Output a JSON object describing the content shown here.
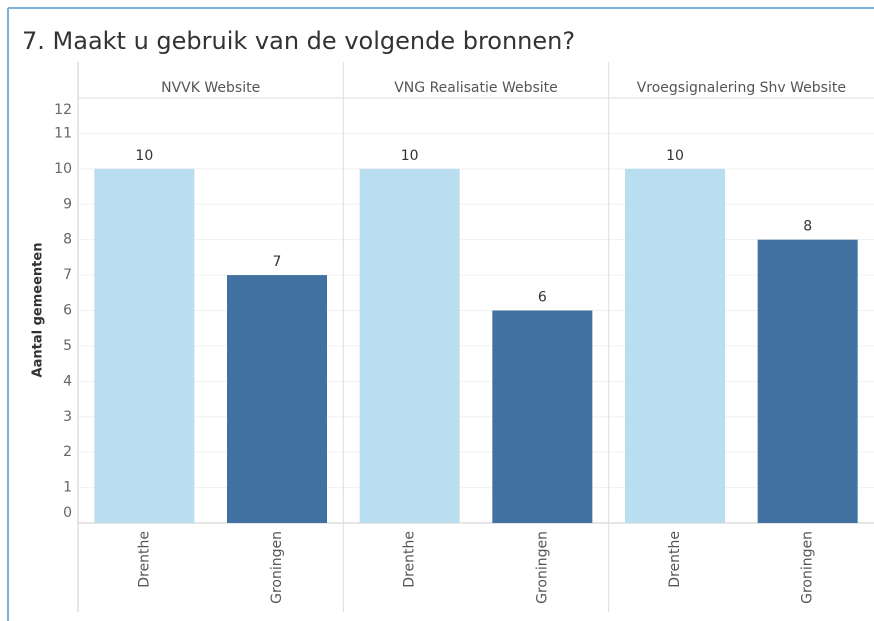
{
  "chart_data": {
    "type": "bar",
    "title": "7. Maakt u gebruik van de volgende bronnen?",
    "ylabel": "Aantal gemeenten",
    "categories": [
      "Drenthe",
      "Groningen"
    ],
    "colors": [
      "#b9def0",
      "#4171a0"
    ],
    "panels": [
      {
        "name": "NVVK Website",
        "values": [
          10,
          7
        ]
      },
      {
        "name": "VNG Realisatie Website",
        "values": [
          10,
          6
        ]
      },
      {
        "name": "Vroegsignalering Shv Website",
        "values": [
          10,
          8
        ]
      }
    ],
    "ylim": [
      0,
      12
    ],
    "yticks": [
      0,
      1,
      2,
      3,
      4,
      5,
      6,
      7,
      8,
      9,
      10,
      11,
      12
    ],
    "grid": true
  }
}
